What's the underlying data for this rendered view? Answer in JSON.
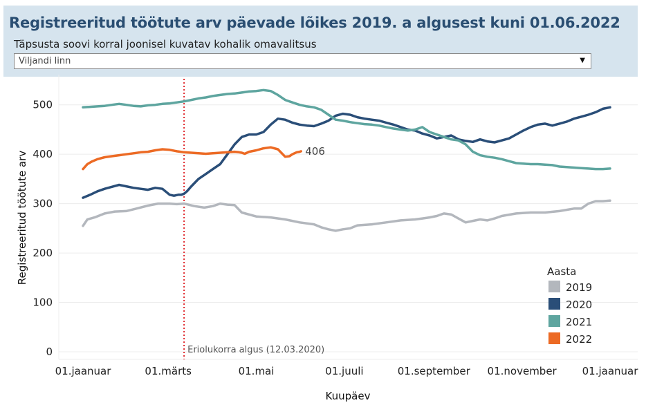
{
  "header": {
    "title": "Registreeritud töötute arv päevade lõikes 2019. a algusest kuni 01.06.2022",
    "filter_label": "Täpsusta soovi korral  joonisel kuvatav kohalik omavalitsus",
    "selected_municipality": "Viljandi linn",
    "dropdown_icon": "triangle-down-icon"
  },
  "chart_data": {
    "type": "line",
    "xlabel": "Kuupäev",
    "ylabel": "Registreeritud töötute arv",
    "ylim": [
      0,
      550
    ],
    "xlim": [
      0,
      365
    ],
    "yticks": [
      0,
      100,
      200,
      300,
      400,
      500
    ],
    "xticks": [
      {
        "day": 0,
        "label": "01.jaanuar"
      },
      {
        "day": 59,
        "label": "01.märts"
      },
      {
        "day": 120,
        "label": "01.mai"
      },
      {
        "day": 181,
        "label": "01.juuli"
      },
      {
        "day": 243,
        "label": "01.september"
      },
      {
        "day": 304,
        "label": "01.november"
      },
      {
        "day": 365,
        "label": "01.jaanuar"
      }
    ],
    "grid": "horizontal",
    "legend_title": "Aasta",
    "legend_position": "bottom-right",
    "annotation": {
      "day": 70,
      "label": "Eriolukorra algus (12.03.2020)",
      "color": "#e0282d"
    },
    "end_label": {
      "series": "2022",
      "text": "406"
    },
    "series": [
      {
        "name": "2019",
        "color": "#b3b7bd",
        "x": [
          0,
          3,
          8,
          15,
          22,
          30,
          37,
          45,
          52,
          57,
          60,
          65,
          70,
          77,
          84,
          90,
          95,
          100,
          105,
          110,
          120,
          130,
          140,
          150,
          160,
          165,
          170,
          175,
          180,
          185,
          190,
          200,
          210,
          220,
          230,
          235,
          240,
          245,
          250,
          255,
          260,
          265,
          270,
          275,
          280,
          285,
          290,
          300,
          310,
          320,
          330,
          340,
          345,
          350,
          355,
          360,
          365
        ],
        "y": [
          255,
          268,
          272,
          280,
          284,
          285,
          290,
          296,
          300,
          300,
          300,
          299,
          300,
          295,
          292,
          295,
          300,
          298,
          297,
          282,
          274,
          272,
          268,
          262,
          258,
          252,
          248,
          245,
          248,
          250,
          256,
          258,
          262,
          266,
          268,
          270,
          272,
          275,
          280,
          278,
          270,
          262,
          265,
          268,
          266,
          270,
          275,
          280,
          282,
          282,
          285,
          290,
          290,
          300,
          305,
          305,
          306
        ]
      },
      {
        "name": "2020",
        "color": "#2a4e78",
        "x": [
          0,
          5,
          10,
          15,
          20,
          25,
          30,
          35,
          40,
          45,
          50,
          55,
          60,
          63,
          66,
          68,
          70,
          72,
          75,
          80,
          85,
          90,
          95,
          100,
          105,
          110,
          115,
          120,
          125,
          130,
          135,
          140,
          145,
          150,
          155,
          160,
          165,
          170,
          175,
          180,
          185,
          190,
          195,
          200,
          205,
          210,
          215,
          220,
          225,
          230,
          235,
          240,
          245,
          250,
          255,
          260,
          265,
          270,
          275,
          280,
          285,
          290,
          295,
          300,
          305,
          310,
          315,
          320,
          325,
          330,
          335,
          340,
          345,
          350,
          355,
          360,
          365
        ],
        "y": [
          312,
          318,
          325,
          330,
          334,
          338,
          335,
          332,
          330,
          328,
          332,
          330,
          318,
          316,
          318,
          318,
          320,
          325,
          335,
          350,
          360,
          370,
          380,
          400,
          420,
          435,
          440,
          440,
          445,
          460,
          472,
          470,
          464,
          460,
          458,
          457,
          462,
          468,
          478,
          482,
          480,
          475,
          472,
          470,
          468,
          464,
          460,
          455,
          450,
          448,
          442,
          438,
          432,
          435,
          438,
          430,
          427,
          425,
          430,
          426,
          424,
          428,
          432,
          440,
          448,
          455,
          460,
          462,
          458,
          462,
          466,
          472,
          476,
          480,
          485,
          492,
          495
        ]
      },
      {
        "name": "2021",
        "color": "#5ea59f",
        "x": [
          0,
          5,
          10,
          15,
          20,
          25,
          30,
          35,
          40,
          45,
          50,
          55,
          60,
          65,
          70,
          75,
          80,
          85,
          90,
          95,
          100,
          105,
          110,
          115,
          120,
          125,
          130,
          135,
          140,
          145,
          150,
          155,
          160,
          165,
          170,
          175,
          180,
          185,
          190,
          195,
          200,
          205,
          210,
          215,
          220,
          225,
          230,
          235,
          240,
          245,
          250,
          255,
          260,
          265,
          270,
          275,
          280,
          285,
          290,
          295,
          300,
          305,
          310,
          315,
          320,
          325,
          330,
          335,
          340,
          345,
          350,
          355,
          360,
          365
        ],
        "y": [
          495,
          496,
          497,
          498,
          500,
          502,
          500,
          498,
          497,
          499,
          500,
          502,
          503,
          505,
          507,
          510,
          513,
          515,
          518,
          520,
          522,
          523,
          525,
          527,
          528,
          530,
          528,
          520,
          510,
          505,
          500,
          497,
          495,
          490,
          480,
          470,
          468,
          465,
          463,
          461,
          460,
          458,
          455,
          452,
          450,
          448,
          450,
          455,
          445,
          440,
          435,
          430,
          428,
          420,
          405,
          398,
          395,
          393,
          390,
          386,
          382,
          381,
          380,
          380,
          379,
          378,
          375,
          374,
          373,
          372,
          371,
          370,
          370,
          371
        ]
      },
      {
        "name": "2022",
        "color": "#ec6a24",
        "x": [
          0,
          3,
          6,
          10,
          15,
          20,
          25,
          30,
          35,
          40,
          45,
          50,
          55,
          60,
          65,
          70,
          75,
          80,
          85,
          90,
          95,
          100,
          105,
          108,
          110,
          112,
          115,
          120,
          125,
          130,
          135,
          140,
          143,
          145,
          148,
          150,
          151
        ],
        "y": [
          370,
          380,
          385,
          390,
          394,
          396,
          398,
          400,
          402,
          404,
          405,
          408,
          410,
          409,
          406,
          404,
          403,
          402,
          401,
          402,
          403,
          404,
          405,
          404,
          403,
          401,
          405,
          408,
          412,
          414,
          410,
          395,
          396,
          400,
          404,
          405,
          406
        ]
      }
    ]
  }
}
